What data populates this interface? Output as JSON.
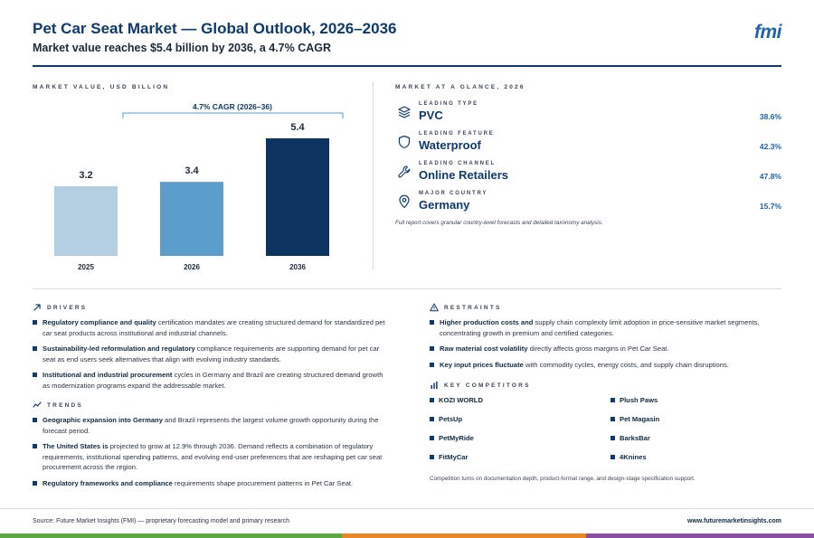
{
  "header": {
    "title": "Pet Car Seat Market — Global Outlook, 2026–2036",
    "subtitle": "Market value reaches $5.4 billion by 2036, a 4.7% CAGR",
    "logo": "fmi"
  },
  "chart_section": {
    "label": "MARKET VALUE, USD BILLION"
  },
  "chart_data": {
    "type": "bar",
    "categories": [
      "2025",
      "2026",
      "2036"
    ],
    "values": [
      3.2,
      3.4,
      5.4
    ],
    "value_labels": [
      "3.2",
      "3.4",
      "5.4"
    ],
    "bar_colors": [
      "#b3cfe1",
      "#5b9ecb",
      "#0d3461"
    ],
    "annotation": "4.7% CAGR (2026–36)",
    "ylim": [
      0,
      5.4
    ]
  },
  "glance": {
    "label": "MARKET AT A GLANCE, 2026",
    "items": [
      {
        "category": "LEADING TYPE",
        "value": "PVC",
        "percent": "38.6%",
        "icon": "layers-icon"
      },
      {
        "category": "LEADING FEATURE",
        "value": "Waterproof",
        "percent": "42.3%",
        "icon": "shield-icon"
      },
      {
        "category": "LEADING CHANNEL",
        "value": "Online Retailers",
        "percent": "47.8%",
        "icon": "wrench-icon"
      },
      {
        "category": "MAJOR COUNTRY",
        "value": "Germany",
        "percent": "15.7%",
        "icon": "map-pin-icon"
      }
    ],
    "note": "Full report covers granular country-level forecasts and detailed taxonomy analysis."
  },
  "drivers": {
    "label": "DRIVERS",
    "items": [
      {
        "bold": "Regulatory compliance and quality",
        "text": " certification mandates are creating structured demand for standardized pet car seat products across institutional and industrial channels."
      },
      {
        "bold": "Sustainability-led reformulation and regulatory",
        "text": " compliance requirements are supporting demand for pet car seat as end users seek alternatives that align with evolving industry standards."
      },
      {
        "bold": "Institutional and industrial procurement",
        "text": " cycles in Germany and Brazil are creating structured demand growth as modernization programs expand the addressable market."
      }
    ]
  },
  "trends": {
    "label": "TRENDS",
    "items": [
      {
        "bold": "Geographic expansion into Germany",
        "text": " and Brazil represents the largest volume growth opportunity during the forecast period."
      },
      {
        "bold": "The United States is",
        "text": " projected to grow at 12.9% through 2036. Demand reflects a combination of regulatory requirements, institutional spending patterns, and evolving end-user preferences that are reshaping pet car seat procurement across the region."
      },
      {
        "bold": "Regulatory frameworks and compliance",
        "text": " requirements shape procurement patterns in Pet Car Seat."
      }
    ]
  },
  "restraints": {
    "label": "RESTRAINTS",
    "items": [
      {
        "bold": "Higher production costs and",
        "text": " supply chain complexity limit adoption in price-sensitive market segments, concentrating growth in premium and certified categories."
      },
      {
        "bold": "Raw material cost volatility",
        "text": " directly affects gross margins in Pet Car Seat."
      },
      {
        "bold": "Key input prices fluctuate",
        "text": " with commodity cycles, energy costs, and supply chain disruptions."
      }
    ]
  },
  "competitors": {
    "label": "KEY COMPETITORS",
    "names": [
      "KOZI WORLD",
      "Plush Paws",
      "PetsUp",
      "Pet Magasin",
      "PetMyRide",
      "BarksBar",
      "FitMyCar",
      "4Knines"
    ],
    "note": "Competition turns on documentation depth, product-format range, and design-stage specification support."
  },
  "footer": {
    "source": "Source: Future Market Insights (FMI) — proprietary forecasting model and primary research",
    "website": "www.futuremarketinsights.com",
    "bar_colors": [
      "#5ea843",
      "#e8862a",
      "#8a4fa0"
    ]
  }
}
